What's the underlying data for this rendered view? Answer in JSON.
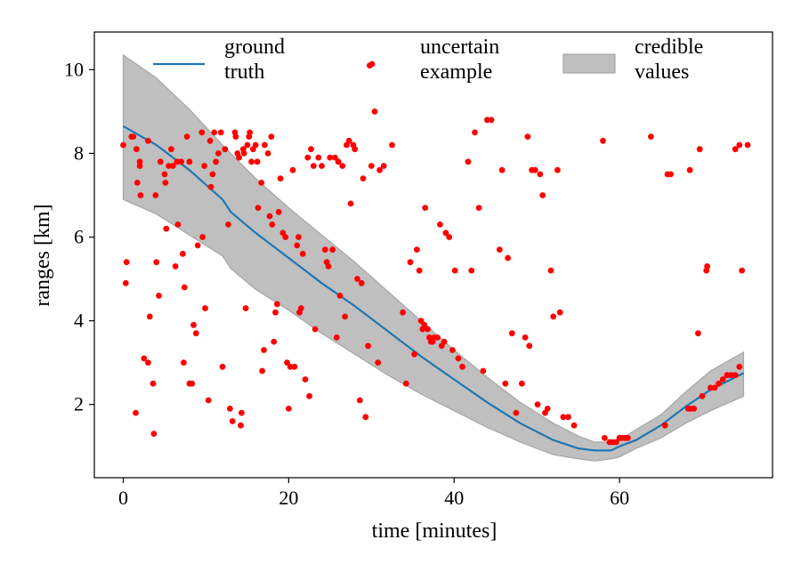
{
  "chart_data": {
    "type": "line+scatter+band",
    "title": "",
    "xlabel": "time [minutes]",
    "ylabel": "ranges [km]",
    "xlim": [
      -3.5,
      78.5
    ],
    "ylim": [
      0.25,
      10.9
    ],
    "xticks": [
      0,
      20,
      40,
      60
    ],
    "yticks": [
      2,
      4,
      6,
      8,
      10
    ],
    "grid": false,
    "legend": {
      "placement": "top",
      "entries": [
        {
          "key": "ground_truth",
          "label_lines": [
            "ground",
            "truth"
          ]
        },
        {
          "key": "uncertain_example",
          "label_lines": [
            "uncertain",
            "example"
          ]
        },
        {
          "key": "credible_values",
          "label_lines": [
            "credible",
            "values"
          ]
        }
      ]
    },
    "colors": {
      "ground_truth": "#1f77b4",
      "uncertain_example": "#ff0000",
      "credible_band_fill": "#bfbfbf",
      "credible_band_edge": "#a6a6a6",
      "axes": "#000000"
    },
    "ground_truth": {
      "x": [
        0,
        4,
        8,
        12,
        13,
        16,
        20,
        24,
        28,
        32,
        36,
        40,
        44,
        48,
        52,
        55,
        57,
        59,
        60,
        62,
        65,
        68,
        71,
        75
      ],
      "y": [
        8.65,
        8.2,
        7.6,
        6.9,
        6.6,
        6.1,
        5.5,
        4.9,
        4.35,
        3.75,
        3.15,
        2.6,
        2.05,
        1.55,
        1.15,
        0.95,
        0.9,
        0.9,
        1.0,
        1.15,
        1.5,
        1.95,
        2.35,
        2.75
      ]
    },
    "credible_values": {
      "x": [
        0,
        4,
        8,
        12,
        13,
        16,
        20,
        24,
        28,
        32,
        36,
        40,
        44,
        48,
        52,
        55,
        57,
        59,
        60,
        62,
        65,
        68,
        71,
        75
      ],
      "upper": [
        10.35,
        9.8,
        9.05,
        8.2,
        8.0,
        7.4,
        6.7,
        6.05,
        5.4,
        4.7,
        4.0,
        3.3,
        2.65,
        2.05,
        1.55,
        1.25,
        1.1,
        1.1,
        1.15,
        1.4,
        1.75,
        2.3,
        2.8,
        3.25
      ],
      "lower": [
        6.9,
        6.55,
        6.05,
        5.55,
        5.25,
        4.75,
        4.25,
        3.7,
        3.2,
        2.7,
        2.25,
        1.85,
        1.45,
        1.1,
        0.8,
        0.7,
        0.65,
        0.7,
        0.75,
        0.95,
        1.2,
        1.55,
        1.85,
        2.2
      ]
    },
    "uncertain_example": {
      "points": [
        [
          0.0,
          8.2
        ],
        [
          0.3,
          4.9
        ],
        [
          0.4,
          5.4
        ],
        [
          1.0,
          8.4
        ],
        [
          1.2,
          8.4
        ],
        [
          1.5,
          1.8
        ],
        [
          1.6,
          8.1
        ],
        [
          1.7,
          7.3
        ],
        [
          2.0,
          7.7
        ],
        [
          2.0,
          7.8
        ],
        [
          2.1,
          7.0
        ],
        [
          2.5,
          3.1
        ],
        [
          3.0,
          8.3
        ],
        [
          3.0,
          3.0
        ],
        [
          3.2,
          4.1
        ],
        [
          3.6,
          2.5
        ],
        [
          3.7,
          1.3
        ],
        [
          3.9,
          7.0
        ],
        [
          4.0,
          5.4
        ],
        [
          4.3,
          4.6
        ],
        [
          4.5,
          7.8
        ],
        [
          5.0,
          7.5
        ],
        [
          5.1,
          7.3
        ],
        [
          5.2,
          6.2
        ],
        [
          5.5,
          7.7
        ],
        [
          5.8,
          8.1
        ],
        [
          6.0,
          7.7
        ],
        [
          6.3,
          5.3
        ],
        [
          6.5,
          7.8
        ],
        [
          6.6,
          6.3
        ],
        [
          7.0,
          7.8
        ],
        [
          7.2,
          5.6
        ],
        [
          7.3,
          3.0
        ],
        [
          7.4,
          4.8
        ],
        [
          7.7,
          8.4
        ],
        [
          8.0,
          7.8
        ],
        [
          8.0,
          2.5
        ],
        [
          8.3,
          2.5
        ],
        [
          8.5,
          3.9
        ],
        [
          8.8,
          3.7
        ],
        [
          9.0,
          5.8
        ],
        [
          9.5,
          8.5
        ],
        [
          9.6,
          6.0
        ],
        [
          9.8,
          7.7
        ],
        [
          9.9,
          4.3
        ],
        [
          10.3,
          2.1
        ],
        [
          10.5,
          8.3
        ],
        [
          10.6,
          7.2
        ],
        [
          10.8,
          7.5
        ],
        [
          11.0,
          8.5
        ],
        [
          11.2,
          7.8
        ],
        [
          11.5,
          8.0
        ],
        [
          11.8,
          8.5
        ],
        [
          12.0,
          2.9
        ],
        [
          12.3,
          8.1
        ],
        [
          12.7,
          6.3
        ],
        [
          12.9,
          1.9
        ],
        [
          13.2,
          1.6
        ],
        [
          13.5,
          8.5
        ],
        [
          13.6,
          8.4
        ],
        [
          13.8,
          8.0
        ],
        [
          14.0,
          7.9
        ],
        [
          14.2,
          1.5
        ],
        [
          14.3,
          1.8
        ],
        [
          14.5,
          8.1
        ],
        [
          14.6,
          8.0
        ],
        [
          14.8,
          4.3
        ],
        [
          15.0,
          8.2
        ],
        [
          15.2,
          8.4
        ],
        [
          15.3,
          8.5
        ],
        [
          15.5,
          7.8
        ],
        [
          15.7,
          8.1
        ],
        [
          16.0,
          8.2
        ],
        [
          16.2,
          7.8
        ],
        [
          16.3,
          6.7
        ],
        [
          16.7,
          7.3
        ],
        [
          16.8,
          2.8
        ],
        [
          17.0,
          3.3
        ],
        [
          17.1,
          8.2
        ],
        [
          17.5,
          8.0
        ],
        [
          17.7,
          6.5
        ],
        [
          17.9,
          8.4
        ],
        [
          18.0,
          6.3
        ],
        [
          18.2,
          3.5
        ],
        [
          18.4,
          4.2
        ],
        [
          18.6,
          4.4
        ],
        [
          18.8,
          6.6
        ],
        [
          19.0,
          7.4
        ],
        [
          19.3,
          6.1
        ],
        [
          19.6,
          6.0
        ],
        [
          19.8,
          3.0
        ],
        [
          20.0,
          1.9
        ],
        [
          20.2,
          2.9
        ],
        [
          20.5,
          7.6
        ],
        [
          20.7,
          2.9
        ],
        [
          21.0,
          5.8
        ],
        [
          21.2,
          6.0
        ],
        [
          21.3,
          4.2
        ],
        [
          21.5,
          4.3
        ],
        [
          21.7,
          5.6
        ],
        [
          22.0,
          2.6
        ],
        [
          22.3,
          7.9
        ],
        [
          22.5,
          2.2
        ],
        [
          22.7,
          8.1
        ],
        [
          23.0,
          7.7
        ],
        [
          23.2,
          3.8
        ],
        [
          23.6,
          7.9
        ],
        [
          24.0,
          7.7
        ],
        [
          24.4,
          5.7
        ],
        [
          24.6,
          5.4
        ],
        [
          24.8,
          5.3
        ],
        [
          25.0,
          7.9
        ],
        [
          25.3,
          5.7
        ],
        [
          25.6,
          7.9
        ],
        [
          25.8,
          3.6
        ],
        [
          26.0,
          7.8
        ],
        [
          26.2,
          4.6
        ],
        [
          26.5,
          7.7
        ],
        [
          26.8,
          4.1
        ],
        [
          27.0,
          8.2
        ],
        [
          27.3,
          8.3
        ],
        [
          27.5,
          6.8
        ],
        [
          27.8,
          8.2
        ],
        [
          28.0,
          8.1
        ],
        [
          28.3,
          5.0
        ],
        [
          28.6,
          2.1
        ],
        [
          28.8,
          4.9
        ],
        [
          29.0,
          7.4
        ],
        [
          29.3,
          1.7
        ],
        [
          29.6,
          3.4
        ],
        [
          29.8,
          10.1
        ],
        [
          30.0,
          7.7
        ],
        [
          30.4,
          9.0
        ],
        [
          30.8,
          3.0
        ],
        [
          31.0,
          7.6
        ],
        [
          31.5,
          7.7
        ],
        [
          32.5,
          8.2
        ],
        [
          33.8,
          4.2
        ],
        [
          34.2,
          2.5
        ],
        [
          34.7,
          5.4
        ],
        [
          35.2,
          3.2
        ],
        [
          35.5,
          5.7
        ],
        [
          35.8,
          5.2
        ],
        [
          36.0,
          4.0
        ],
        [
          36.2,
          3.8
        ],
        [
          36.4,
          3.9
        ],
        [
          36.5,
          6.7
        ],
        [
          36.8,
          3.8
        ],
        [
          37.0,
          3.6
        ],
        [
          37.2,
          3.5
        ],
        [
          37.4,
          3.5
        ],
        [
          37.6,
          3.6
        ],
        [
          38.0,
          3.6
        ],
        [
          38.3,
          6.3
        ],
        [
          38.5,
          3.4
        ],
        [
          38.8,
          3.5
        ],
        [
          39.0,
          6.1
        ],
        [
          39.4,
          6.0
        ],
        [
          39.8,
          3.3
        ],
        [
          40.1,
          5.2
        ],
        [
          40.5,
          3.1
        ],
        [
          41.0,
          2.9
        ],
        [
          41.7,
          7.8
        ],
        [
          42.1,
          5.2
        ],
        [
          42.5,
          8.5
        ],
        [
          43.0,
          6.7
        ],
        [
          43.5,
          2.8
        ],
        [
          44.0,
          8.8
        ],
        [
          44.5,
          8.8
        ],
        [
          45.5,
          5.7
        ],
        [
          45.8,
          7.6
        ],
        [
          46.2,
          2.5
        ],
        [
          46.5,
          5.5
        ],
        [
          47.0,
          3.7
        ],
        [
          47.5,
          1.8
        ],
        [
          48.2,
          2.5
        ],
        [
          48.6,
          3.6
        ],
        [
          48.9,
          8.4
        ],
        [
          49.1,
          3.4
        ],
        [
          49.4,
          7.6
        ],
        [
          49.8,
          7.6
        ],
        [
          50.1,
          2.0
        ],
        [
          50.4,
          7.5
        ],
        [
          50.7,
          7.0
        ],
        [
          51.0,
          1.8
        ],
        [
          51.3,
          1.9
        ],
        [
          51.7,
          5.2
        ],
        [
          52.0,
          4.1
        ],
        [
          52.5,
          7.6
        ],
        [
          52.8,
          4.2
        ],
        [
          53.2,
          1.7
        ],
        [
          53.8,
          1.7
        ],
        [
          54.5,
          1.5
        ],
        [
          58.2,
          1.2
        ],
        [
          58.0,
          8.3
        ],
        [
          58.8,
          1.1
        ],
        [
          59.2,
          1.1
        ],
        [
          59.6,
          1.1
        ],
        [
          60.0,
          1.2
        ],
        [
          60.3,
          1.2
        ],
        [
          60.7,
          1.2
        ],
        [
          61.0,
          1.2
        ],
        [
          63.8,
          8.4
        ],
        [
          65.5,
          1.5
        ],
        [
          65.8,
          7.5
        ],
        [
          66.2,
          7.5
        ],
        [
          68.3,
          1.9
        ],
        [
          68.6,
          1.9
        ],
        [
          69.0,
          1.9
        ],
        [
          68.5,
          7.6
        ],
        [
          69.5,
          3.7
        ],
        [
          69.7,
          8.1
        ],
        [
          70.0,
          2.2
        ],
        [
          70.5,
          5.2
        ],
        [
          70.6,
          5.3
        ],
        [
          71.0,
          2.4
        ],
        [
          71.5,
          2.4
        ],
        [
          72.0,
          2.5
        ],
        [
          72.5,
          2.6
        ],
        [
          73.0,
          2.7
        ],
        [
          73.5,
          2.7
        ],
        [
          74.0,
          2.7
        ],
        [
          74.5,
          2.9
        ],
        [
          74.0,
          8.1
        ],
        [
          74.5,
          8.2
        ],
        [
          75.5,
          8.2
        ],
        [
          74.8,
          5.2
        ]
      ]
    }
  }
}
